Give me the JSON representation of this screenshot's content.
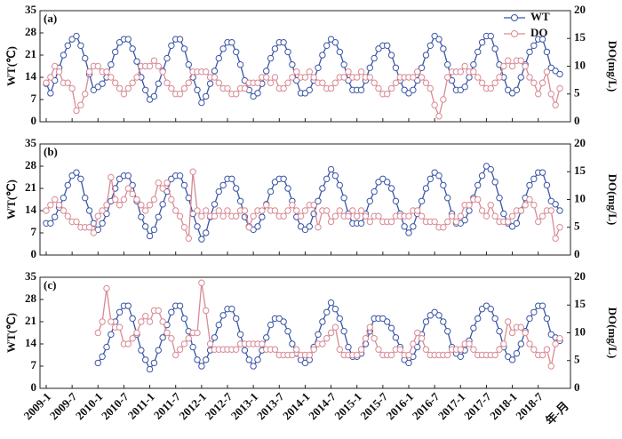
{
  "chart_data": [
    {
      "type": "line",
      "label": "(a)",
      "ylabel": "WT(℃)",
      "y2label": "DO(mg/L)",
      "ylim": [
        0,
        35
      ],
      "yticks": [
        0,
        7,
        14,
        21,
        28,
        35
      ],
      "y2lim": [
        0,
        20
      ],
      "y2ticks": [
        0,
        5,
        10,
        15,
        20
      ],
      "legend": "upper right",
      "series": [
        {
          "name": "WT",
          "color": "#3a55a4",
          "values": [
            12,
            9,
            13,
            17,
            21,
            24,
            26,
            27,
            24,
            20,
            15,
            10,
            11,
            12,
            14,
            18,
            22,
            25,
            26,
            26,
            23,
            19,
            14,
            10,
            7,
            8,
            12,
            16,
            20,
            24,
            26,
            26,
            23,
            18,
            14,
            10,
            6,
            8,
            12,
            16,
            20,
            23,
            25,
            25,
            22,
            18,
            13,
            10,
            8,
            9,
            12,
            16,
            20,
            23,
            25,
            25,
            22,
            18,
            13,
            9,
            9,
            10,
            13,
            17,
            21,
            24,
            26,
            25,
            22,
            18,
            13,
            10,
            10,
            10,
            13,
            17,
            20,
            23,
            24,
            24,
            21,
            17,
            13,
            10,
            9,
            10,
            13,
            17,
            21,
            24,
            27,
            26,
            23,
            18,
            13,
            10,
            10,
            11,
            14,
            18,
            22,
            25,
            27,
            27,
            23,
            18,
            14,
            10,
            9,
            10,
            14,
            18,
            22,
            24,
            26,
            26,
            22,
            17,
            16,
            15
          ]
        },
        {
          "name": "DO",
          "color": "#d98a94",
          "axis": "y2",
          "values": [
            7,
            8,
            10,
            9,
            7,
            7,
            6,
            2,
            3,
            5,
            9,
            10,
            10,
            9,
            9,
            8,
            7,
            6,
            5,
            6,
            7,
            8,
            10,
            10,
            10,
            11,
            10,
            9,
            7,
            6,
            5,
            5,
            6,
            7,
            9,
            9,
            9,
            9,
            8,
            8,
            7,
            6,
            6,
            5,
            5,
            6,
            6,
            7,
            7,
            7,
            8,
            8,
            7,
            8,
            6,
            6,
            7,
            8,
            9,
            8,
            8,
            9,
            8,
            7,
            7,
            6,
            6,
            7,
            8,
            8,
            9,
            8,
            8,
            9,
            8,
            8,
            7,
            6,
            5,
            5,
            6,
            7,
            8,
            8,
            8,
            8,
            9,
            8,
            7,
            6,
            3,
            1,
            4,
            8,
            9,
            9,
            9,
            10,
            9,
            9,
            8,
            7,
            6,
            6,
            7,
            8,
            10,
            11,
            10,
            11,
            11,
            10,
            8,
            7,
            5,
            7,
            9,
            5,
            3,
            6
          ]
        }
      ]
    },
    {
      "type": "line",
      "label": "(b)",
      "ylabel": "WT(℃)",
      "y2label": "DO(mg/L)",
      "ylim": [
        0,
        35
      ],
      "yticks": [
        0,
        7,
        14,
        21,
        28,
        35
      ],
      "y2lim": [
        0,
        20
      ],
      "y2ticks": [
        0,
        5,
        10,
        15,
        20
      ],
      "series": [
        {
          "color": "#3a55a4",
          "values": [
            10,
            10,
            12,
            15,
            18,
            22,
            25,
            26,
            24,
            18,
            14,
            10,
            8,
            10,
            13,
            17,
            21,
            24,
            25,
            25,
            22,
            17,
            12,
            9,
            6,
            8,
            12,
            16,
            20,
            24,
            25,
            25,
            22,
            18,
            13,
            9,
            5,
            7,
            12,
            16,
            20,
            22,
            24,
            24,
            21,
            17,
            12,
            9,
            8,
            9,
            12,
            16,
            20,
            23,
            24,
            24,
            21,
            17,
            12,
            9,
            8,
            9,
            13,
            17,
            21,
            24,
            27,
            25,
            22,
            18,
            13,
            10,
            10,
            10,
            13,
            17,
            20,
            23,
            24,
            23,
            21,
            17,
            13,
            9,
            7,
            9,
            13,
            17,
            21,
            24,
            26,
            25,
            22,
            18,
            13,
            10,
            10,
            11,
            14,
            18,
            22,
            25,
            28,
            27,
            23,
            18,
            13,
            10,
            9,
            10,
            14,
            18,
            22,
            24,
            26,
            26,
            22,
            17,
            16,
            14
          ]
        },
        {
          "color": "#d98a94",
          "axis": "y2",
          "values": [
            8,
            9,
            10,
            9,
            8,
            7,
            6,
            6,
            5,
            5,
            5,
            4,
            7,
            8,
            9,
            14,
            10,
            9,
            10,
            12,
            11,
            10,
            9,
            8,
            9,
            10,
            13,
            12,
            13,
            10,
            8,
            7,
            5,
            3,
            15,
            8,
            7,
            8,
            7,
            7,
            8,
            7,
            8,
            7,
            7,
            8,
            8,
            5,
            7,
            8,
            8,
            9,
            8,
            8,
            7,
            7,
            8,
            9,
            8,
            7,
            8,
            9,
            9,
            5,
            8,
            8,
            6,
            7,
            8,
            7,
            7,
            8,
            7,
            8,
            7,
            6,
            7,
            7,
            6,
            6,
            6,
            7,
            7,
            7,
            7,
            8,
            8,
            7,
            6,
            6,
            6,
            5,
            5,
            6,
            7,
            6,
            7,
            9,
            9,
            10,
            10,
            8,
            7,
            9,
            7,
            6,
            6,
            6,
            7,
            8,
            8,
            9,
            10,
            9,
            6,
            7,
            8,
            8,
            3,
            5
          ]
        }
      ]
    },
    {
      "type": "line",
      "label": "(c)",
      "ylabel": "WT(℃)",
      "y2label": "DO(mg/L)",
      "ylim": [
        0,
        35
      ],
      "yticks": [
        0,
        7,
        14,
        21,
        28,
        35
      ],
      "y2lim": [
        0,
        20
      ],
      "y2ticks": [
        0,
        5,
        10,
        15,
        20
      ],
      "xlabel": "年-月",
      "categories": [
        "2009-1",
        null,
        null,
        null,
        null,
        null,
        "2009-7",
        null,
        null,
        null,
        null,
        null,
        "2010-1",
        null,
        null,
        null,
        null,
        null,
        "2010-7",
        null,
        null,
        null,
        null,
        null,
        "2011-1",
        null,
        null,
        null,
        null,
        null,
        "2011-7",
        null,
        null,
        null,
        null,
        null,
        "2012-1",
        null,
        null,
        null,
        null,
        null,
        "2012-7",
        null,
        null,
        null,
        null,
        null,
        "2013-1",
        null,
        null,
        null,
        null,
        null,
        "2013-7",
        null,
        null,
        null,
        null,
        null,
        "2014-1",
        null,
        null,
        null,
        null,
        null,
        "2014-7",
        null,
        null,
        null,
        null,
        null,
        "2015-1",
        null,
        null,
        null,
        null,
        null,
        "2015-7",
        null,
        null,
        null,
        null,
        null,
        "2016-1",
        null,
        null,
        null,
        null,
        null,
        "2016-7",
        null,
        null,
        null,
        null,
        null,
        "2017-1",
        null,
        null,
        null,
        null,
        null,
        "2017-7",
        null,
        null,
        null,
        null,
        null,
        "2018-1",
        null,
        null,
        null,
        null,
        null,
        "2018-7",
        null,
        null,
        null,
        null,
        null
      ],
      "series": [
        {
          "color": "#3a55a4",
          "values": [
            null,
            null,
            null,
            null,
            null,
            null,
            null,
            null,
            null,
            null,
            null,
            null,
            8,
            10,
            13,
            17,
            21,
            24,
            26,
            26,
            22,
            17,
            12,
            9,
            6,
            8,
            12,
            16,
            20,
            24,
            26,
            26,
            22,
            18,
            13,
            9,
            7,
            9,
            12,
            16,
            20,
            23,
            25,
            25,
            22,
            17,
            12,
            9,
            7,
            9,
            12,
            16,
            20,
            22,
            22,
            21,
            18,
            14,
            11,
            9,
            8,
            9,
            13,
            17,
            21,
            24,
            27,
            25,
            22,
            18,
            13,
            10,
            10,
            11,
            14,
            18,
            22,
            22,
            22,
            21,
            19,
            16,
            13,
            9,
            8,
            10,
            13,
            17,
            21,
            23,
            24,
            23,
            21,
            18,
            13,
            11,
            10,
            12,
            15,
            19,
            22,
            25,
            26,
            25,
            22,
            18,
            13,
            10,
            9,
            11,
            14,
            18,
            22,
            24,
            26,
            26,
            22,
            17,
            16,
            15
          ]
        },
        {
          "color": "#d98a94",
          "axis": "y2",
          "values": [
            null,
            null,
            null,
            null,
            null,
            null,
            null,
            null,
            null,
            null,
            null,
            null,
            10,
            12,
            18,
            12,
            11,
            11,
            8,
            8,
            9,
            10,
            12,
            13,
            12,
            14,
            14,
            12,
            10,
            9,
            6,
            7,
            8,
            9,
            10,
            10,
            19,
            14,
            8,
            7,
            7,
            7,
            7,
            7,
            7,
            8,
            8,
            8,
            8,
            8,
            8,
            7,
            7,
            7,
            6,
            6,
            6,
            6,
            7,
            6,
            6,
            6,
            7,
            8,
            8,
            9,
            10,
            11,
            7,
            6,
            6,
            6,
            6,
            7,
            9,
            11,
            9,
            7,
            6,
            6,
            6,
            7,
            7,
            6,
            6,
            8,
            10,
            9,
            7,
            6,
            6,
            6,
            6,
            6,
            7,
            7,
            7,
            8,
            8,
            7,
            6,
            6,
            6,
            6,
            6,
            7,
            8,
            12,
            10,
            11,
            11,
            10,
            8,
            7,
            6,
            6,
            7,
            4,
            8,
            9
          ]
        }
      ]
    }
  ]
}
